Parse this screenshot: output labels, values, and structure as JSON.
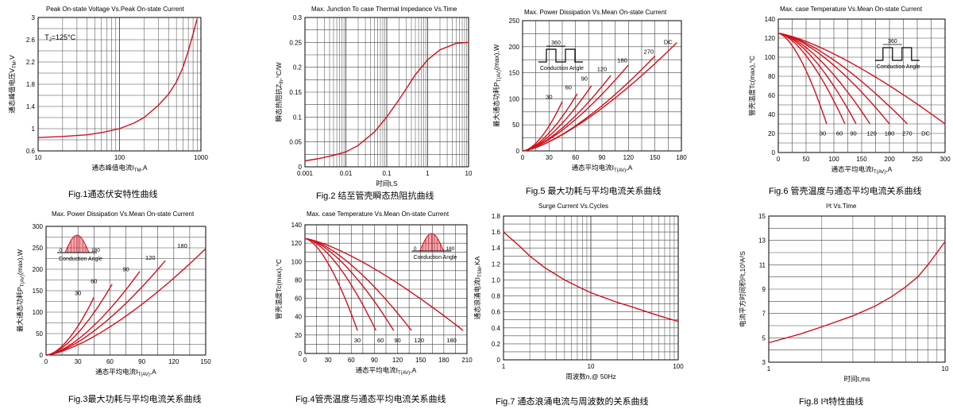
{
  "colors": {
    "curve": "#d4101c",
    "grid": "#444444",
    "frame": "#000000"
  },
  "chart_data": [
    {
      "id": "fig1",
      "type": "line",
      "title": "Peak On-state Voltage Vs.Peak On-state Current",
      "xlabel": "通态峰值电流I",
      "xlabel_sub": "TM",
      "xlabel_tail": ",A",
      "ylabel": "通态峰值电压V",
      "ylabel_sub": "TM",
      "ylabel_tail": ",V",
      "caption": "Fig.1通态伏安特性曲线",
      "annotations": [
        {
          "text": "T",
          "sub": "J",
          "tail": "=125°C",
          "x": 11,
          "y": 2.6
        }
      ],
      "xscale": "log",
      "xlim": [
        10,
        1000
      ],
      "xticks": [
        "10",
        "100",
        "1000"
      ],
      "xtick_values": [
        10,
        100,
        1000
      ],
      "ylim": [
        0.6,
        3
      ],
      "yticks": [
        "0.6",
        "1",
        "1.4",
        "1.8",
        "2.2",
        "2.6",
        "3"
      ],
      "ytick_values": [
        0.6,
        1,
        1.4,
        1.8,
        2.2,
        2.6,
        3
      ],
      "series": [
        {
          "x": [
            10,
            20,
            40,
            60,
            100,
            150,
            200,
            300,
            400,
            500,
            600,
            700,
            800,
            900
          ],
          "y": [
            0.84,
            0.86,
            0.89,
            0.93,
            1.0,
            1.1,
            1.2,
            1.42,
            1.62,
            1.84,
            2.1,
            2.4,
            2.7,
            2.98
          ]
        }
      ]
    },
    {
      "id": "fig2",
      "type": "line",
      "title": "Max. Junction To case Thermal Impedance Vs.Time",
      "xlabel": "时间t,S",
      "xlabel_sub": "",
      "xlabel_tail": "",
      "ylabel": "瞬态热阻抗Z",
      "ylabel_sub": "th",
      "ylabel_tail": ",°C/W",
      "caption": "Fig.2 结至管壳瞬态热阻抗曲线",
      "annotations": [],
      "xscale": "log",
      "xlim": [
        0.001,
        10
      ],
      "xticks": [
        "0.001",
        "0.01",
        "0.1",
        "1",
        "10"
      ],
      "xtick_values": [
        0.001,
        0.01,
        0.1,
        1,
        10
      ],
      "ylim": [
        0,
        0.3
      ],
      "yticks": [
        "0",
        "0.05",
        "0.1",
        "0.15",
        "0.2",
        "0.25",
        "0.3"
      ],
      "ytick_values": [
        0,
        0.05,
        0.1,
        0.15,
        0.2,
        0.25,
        0.3
      ],
      "series": [
        {
          "x": [
            0.001,
            0.002,
            0.005,
            0.01,
            0.02,
            0.05,
            0.1,
            0.2,
            0.5,
            1,
            2,
            5,
            10
          ],
          "y": [
            0.012,
            0.016,
            0.023,
            0.03,
            0.043,
            0.07,
            0.1,
            0.135,
            0.185,
            0.215,
            0.235,
            0.248,
            0.25
          ]
        }
      ]
    },
    {
      "id": "fig5",
      "type": "line",
      "title": "Max. Power Dissipation Vs.Mean On-state Current",
      "xlabel": "通态平均电流I",
      "xlabel_sub": "T(AV)",
      "xlabel_tail": ",A",
      "ylabel": "最大通态功耗P",
      "ylabel_sub": "T(AV)",
      "ylabel_tail": "(max),W",
      "caption": "Fig.5 最大功耗与平均电流关系曲线",
      "inset": {
        "kind": "square",
        "angle": "360",
        "label": "Conduction Angle"
      },
      "annotations": [],
      "xscale": "linear",
      "xlim": [
        0,
        180
      ],
      "xticks": [
        "0",
        "30",
        "60",
        "90",
        "120",
        "150",
        "180"
      ],
      "xtick_values": [
        0,
        30,
        60,
        90,
        120,
        150,
        180
      ],
      "ylim": [
        0,
        250
      ],
      "yticks": [
        "0",
        "50",
        "100",
        "150",
        "200",
        "250"
      ],
      "ytick_values": [
        0,
        50,
        100,
        150,
        200,
        250
      ],
      "series": [
        {
          "name": "30",
          "x": [
            0,
            45
          ],
          "y": [
            0,
            95
          ],
          "k": 1.7
        },
        {
          "name": "60",
          "x": [
            0,
            62
          ],
          "y": [
            0,
            110
          ],
          "k": 1.6
        },
        {
          "name": "90",
          "x": [
            0,
            78
          ],
          "y": [
            0,
            125
          ],
          "k": 1.55
        },
        {
          "name": "120",
          "x": [
            0,
            100
          ],
          "y": [
            0,
            145
          ],
          "k": 1.5
        },
        {
          "name": "180",
          "x": [
            0,
            120
          ],
          "y": [
            0,
            165
          ],
          "k": 1.45
        },
        {
          "name": "270",
          "x": [
            0,
            150
          ],
          "y": [
            0,
            182
          ],
          "k": 1.45
        },
        {
          "name": "DC",
          "x": [
            0,
            175
          ],
          "y": [
            0,
            208
          ],
          "k": 1.4
        }
      ],
      "series_labels": [
        {
          "text": "30",
          "x": 30,
          "y": 100
        },
        {
          "text": "60",
          "x": 52,
          "y": 118
        },
        {
          "text": "90",
          "x": 70,
          "y": 135
        },
        {
          "text": "120",
          "x": 90,
          "y": 153
        },
        {
          "text": "180",
          "x": 113,
          "y": 170
        },
        {
          "text": "270",
          "x": 143,
          "y": 187
        },
        {
          "text": "DC",
          "x": 165,
          "y": 205
        }
      ]
    },
    {
      "id": "fig6",
      "type": "line",
      "title": "Max. case Temperature Vs.Mean On-state Current",
      "xlabel": "通态平均电流I",
      "xlabel_sub": "T(AV)",
      "xlabel_tail": ",A",
      "ylabel": "管壳温度Tc(max),°C",
      "ylabel_sub": "",
      "ylabel_tail": "",
      "caption": "Fig.6 管壳温度与通态平均电流关系曲线",
      "inset": {
        "kind": "square",
        "angle": "360",
        "label": "Conduction Angle"
      },
      "annotations": [],
      "xscale": "linear",
      "xlim": [
        0,
        300
      ],
      "xticks": [
        "0",
        "50",
        "100",
        "150",
        "200",
        "250",
        "300"
      ],
      "xtick_values": [
        0,
        50,
        100,
        150,
        200,
        250,
        300
      ],
      "ylim": [
        0,
        140
      ],
      "yticks": [
        "0",
        "20",
        "40",
        "60",
        "80",
        "100",
        "120",
        "140"
      ],
      "ytick_values": [
        0,
        20,
        40,
        60,
        80,
        100,
        120,
        140
      ],
      "series": [
        {
          "name": "30",
          "x": [
            0,
            87
          ],
          "y": [
            125,
            30
          ],
          "k": 1.6
        },
        {
          "name": "60",
          "x": [
            0,
            120
          ],
          "y": [
            125,
            30
          ],
          "k": 1.6
        },
        {
          "name": "90",
          "x": [
            0,
            140
          ],
          "y": [
            125,
            30
          ],
          "k": 1.6
        },
        {
          "name": "120",
          "x": [
            0,
            165
          ],
          "y": [
            125,
            30
          ],
          "k": 1.55
        },
        {
          "name": "180",
          "x": [
            0,
            200
          ],
          "y": [
            125,
            30
          ],
          "k": 1.5
        },
        {
          "name": "270",
          "x": [
            0,
            232
          ],
          "y": [
            125,
            30
          ],
          "k": 1.45
        },
        {
          "name": "DC",
          "x": [
            0,
            300
          ],
          "y": [
            125,
            30
          ],
          "k": 1.35
        }
      ],
      "series_labels": [
        {
          "text": "30",
          "x": 80,
          "y": 18
        },
        {
          "text": "60",
          "x": 110,
          "y": 18
        },
        {
          "text": "90",
          "x": 135,
          "y": 18
        },
        {
          "text": "120",
          "x": 168,
          "y": 18
        },
        {
          "text": "180",
          "x": 200,
          "y": 18
        },
        {
          "text": "270",
          "x": 232,
          "y": 18
        },
        {
          "text": "DC",
          "x": 265,
          "y": 18
        }
      ]
    },
    {
      "id": "fig3",
      "type": "line",
      "title": "Max. Power Dissipation Vs.Mean On-state Current",
      "xlabel": "通态平均电流I",
      "xlabel_sub": "T(AV)",
      "xlabel_tail": ",A",
      "ylabel": "最大通态功耗P",
      "ylabel_sub": "T(AV)",
      "ylabel_tail": "(max),W",
      "caption": "Fig.3最大功耗与平均电流关系曲线",
      "inset": {
        "kind": "sine",
        "start": "0",
        "end": "180",
        "label": "Conduction Angle"
      },
      "annotations": [],
      "xscale": "linear",
      "xlim": [
        0,
        150
      ],
      "xticks": [
        "0",
        "30",
        "60",
        "90",
        "120",
        "150"
      ],
      "xtick_values": [
        0,
        30,
        60,
        90,
        120,
        150
      ],
      "ylim": [
        0,
        300
      ],
      "yticks": [
        "0",
        "50",
        "100",
        "150",
        "200",
        "250",
        "300"
      ],
      "ytick_values": [
        0,
        50,
        100,
        150,
        200,
        250,
        300
      ],
      "series": [
        {
          "name": "30",
          "x": [
            0,
            45
          ],
          "y": [
            0,
            135
          ],
          "k": 1.7
        },
        {
          "name": "60",
          "x": [
            0,
            62
          ],
          "y": [
            0,
            165
          ],
          "k": 1.6
        },
        {
          "name": "90",
          "x": [
            0,
            88
          ],
          "y": [
            0,
            195
          ],
          "k": 1.55
        },
        {
          "name": "120",
          "x": [
            0,
            112
          ],
          "y": [
            0,
            220
          ],
          "k": 1.5
        },
        {
          "name": "180",
          "x": [
            0,
            150
          ],
          "y": [
            0,
            248
          ],
          "k": 1.45
        }
      ],
      "series_labels": [
        {
          "text": "30",
          "x": 30,
          "y": 140
        },
        {
          "text": "60",
          "x": 45,
          "y": 168
        },
        {
          "text": "90",
          "x": 75,
          "y": 195
        },
        {
          "text": "120",
          "x": 98,
          "y": 222
        },
        {
          "text": "180",
          "x": 128,
          "y": 250
        }
      ]
    },
    {
      "id": "fig4",
      "type": "line",
      "title": "Max. case Temperature Vs.Mean On-state Current",
      "xlabel": "通态平均电流I",
      "xlabel_sub": "T(AV)",
      "xlabel_tail": ",A",
      "ylabel": "管壳温度Tc(max),°C",
      "ylabel_sub": "",
      "ylabel_tail": "",
      "caption": "Fig.4管壳温度与通态平均电流关系曲线",
      "inset": {
        "kind": "sine",
        "start": "0",
        "end": "180",
        "label": "Conduction Angle"
      },
      "annotations": [],
      "xscale": "linear",
      "xlim": [
        0,
        210
      ],
      "xticks": [
        "0",
        "30",
        "60",
        "90",
        "120",
        "150",
        "180",
        "210"
      ],
      "xtick_values": [
        0,
        30,
        60,
        90,
        120,
        150,
        180,
        210
      ],
      "ylim": [
        0,
        140
      ],
      "yticks": [
        "0",
        "20",
        "40",
        "60",
        "80",
        "100",
        "120",
        "140"
      ],
      "ytick_values": [
        0,
        20,
        40,
        60,
        80,
        100,
        120,
        140
      ],
      "series": [
        {
          "name": "30",
          "x": [
            0,
            68
          ],
          "y": [
            125,
            25
          ],
          "k": 1.6
        },
        {
          "name": "60",
          "x": [
            0,
            92
          ],
          "y": [
            125,
            25
          ],
          "k": 1.6
        },
        {
          "name": "90",
          "x": [
            0,
            115
          ],
          "y": [
            125,
            25
          ],
          "k": 1.55
        },
        {
          "name": "120",
          "x": [
            0,
            138
          ],
          "y": [
            125,
            25
          ],
          "k": 1.5
        },
        {
          "name": "180",
          "x": [
            0,
            205
          ],
          "y": [
            125,
            25
          ],
          "k": 1.35
        }
      ],
      "series_labels": [
        {
          "text": "30",
          "x": 68,
          "y": 12
        },
        {
          "text": "60",
          "x": 98,
          "y": 12
        },
        {
          "text": "90",
          "x": 120,
          "y": 12
        },
        {
          "text": "120",
          "x": 148,
          "y": 12
        },
        {
          "text": "180",
          "x": 190,
          "y": 12
        }
      ]
    },
    {
      "id": "fig7",
      "type": "line",
      "title": "Surge Current Vs.Cycles",
      "xlabel": "周波数n,@ 50Hz",
      "xlabel_sub": "",
      "xlabel_tail": "",
      "ylabel": "通态浪涌电流I",
      "ylabel_sub": "TSM",
      "ylabel_tail": ",KA",
      "caption": "Fig.7 通态浪涌电流与周波数的关系曲线",
      "annotations": [],
      "xscale": "log",
      "xlim": [
        1,
        100
      ],
      "xticks": [
        "1",
        "10",
        "100"
      ],
      "xtick_values": [
        1,
        10,
        100
      ],
      "ylim": [
        0,
        1.8
      ],
      "yticks": [
        "0",
        "0.2",
        "0.4",
        "0.6",
        "0.8",
        "1.0",
        "1.2",
        "1.4",
        "1.6",
        "1.8"
      ],
      "ytick_values": [
        0,
        0.2,
        0.4,
        0.6,
        0.8,
        1.0,
        1.2,
        1.4,
        1.6,
        1.8
      ],
      "series": [
        {
          "x": [
            1,
            1.5,
            2,
            3,
            5,
            7,
            10,
            20,
            30,
            50,
            70,
            100
          ],
          "y": [
            1.6,
            1.43,
            1.3,
            1.15,
            1.0,
            0.92,
            0.84,
            0.72,
            0.66,
            0.58,
            0.53,
            0.48
          ]
        }
      ]
    },
    {
      "id": "fig8",
      "type": "line",
      "title": "I²t Vs.Time",
      "xlabel": "时间t,ms",
      "xlabel_sub": "",
      "xlabel_tail": "",
      "ylabel": "电流平方时间积I²t,10³A²S",
      "ylabel_sub": "",
      "ylabel_tail": "",
      "caption": "Fig.8 I²t特性曲线",
      "annotations": [],
      "xscale": "log",
      "xlim": [
        1,
        10
      ],
      "xticks": [
        "1",
        "10"
      ],
      "xtick_values": [
        1,
        10
      ],
      "ylim": [
        3,
        15
      ],
      "yticks": [
        "3",
        "5",
        "7",
        "9",
        "11",
        "13",
        "15"
      ],
      "ytick_values": [
        3,
        5,
        7,
        9,
        11,
        13,
        15
      ],
      "series": [
        {
          "x": [
            1,
            1.5,
            2,
            3,
            4,
            5,
            6,
            7,
            8,
            9,
            10
          ],
          "y": [
            4.6,
            5.3,
            5.9,
            6.8,
            7.6,
            8.4,
            9.2,
            10.0,
            11.0,
            12.0,
            12.9
          ]
        }
      ]
    }
  ]
}
